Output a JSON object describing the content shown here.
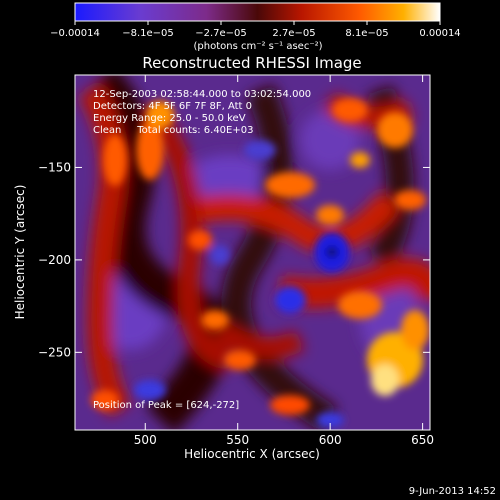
{
  "colorbar": {
    "ticks": [
      "−0.00014",
      "−8.1e−05",
      "−2.7e−05",
      "2.7e−05",
      "8.1e−05",
      "0.00014"
    ],
    "units": "(photons cm⁻² s⁻¹ asec⁻²)",
    "colors": [
      "#1a1aff",
      "#6a3cd0",
      "#7d2b8a",
      "#6a1010",
      "#b81600",
      "#ff5a00",
      "#ffb000",
      "#ffffff"
    ]
  },
  "image": {
    "title": "Reconstructed RHESSI Image",
    "time_range": "12-Sep-2003 02:58:44.000 to 03:02:54.000",
    "detectors": "Detectors: 4F 5F 6F 7F 8F, Att 0",
    "energy": "Energy Range: 25.0 - 50.0 keV",
    "clean": "Clean     Total counts: 6.40E+03",
    "peak": "Position of Peak = [624,-272]"
  },
  "axes": {
    "xlabel": "Heliocentric X (arcsec)",
    "ylabel": "Heliocentric Y (arcsec)",
    "xticks": [
      {
        "value": 500,
        "label": "500"
      },
      {
        "value": 550,
        "label": "550"
      },
      {
        "value": 600,
        "label": "600"
      },
      {
        "value": 650,
        "label": "650"
      }
    ],
    "yticks": [
      {
        "value": -150,
        "label": "−150"
      },
      {
        "value": -200,
        "label": "−200"
      },
      {
        "value": -250,
        "label": "−250"
      }
    ],
    "xrange": [
      462,
      654
    ],
    "yrange": [
      -292,
      -100
    ]
  },
  "footer": {
    "date": "9-Jun-2013 14:52"
  }
}
